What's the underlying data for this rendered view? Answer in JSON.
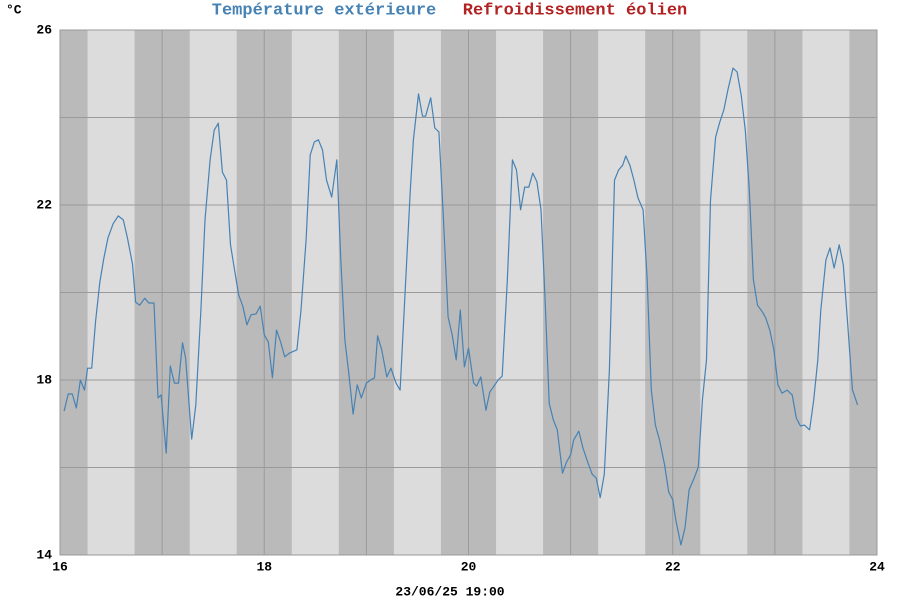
{
  "chart_data": {
    "type": "line",
    "ylabel": "°C",
    "x_label": "23/06/25 19:00",
    "xlim": [
      16,
      24
    ],
    "xticks": [
      16,
      18,
      20,
      22,
      24
    ],
    "xminorticks": [
      17,
      19,
      21,
      23
    ],
    "ylim": [
      14,
      26
    ],
    "yticks": [
      14,
      18,
      22,
      26
    ],
    "yminorticks": [
      16,
      20,
      24
    ],
    "grid": true,
    "day_bands": [
      [
        16.27,
        16.73
      ],
      [
        17.27,
        17.73
      ],
      [
        18.27,
        18.73
      ],
      [
        19.27,
        19.73
      ],
      [
        20.27,
        20.73
      ],
      [
        21.27,
        21.73
      ],
      [
        22.27,
        22.73
      ],
      [
        23.27,
        23.73
      ]
    ],
    "band_color": "#dcdcdc",
    "night_color": "#bababa",
    "grid_color": "#9a9a9a",
    "x": [
      16.04,
      16.08,
      16.12,
      16.16,
      16.2,
      16.24,
      16.27,
      16.31,
      16.35,
      16.39,
      16.43,
      16.47,
      16.52,
      16.57,
      16.62,
      16.66,
      16.71,
      16.74,
      16.78,
      16.83,
      16.87,
      16.92,
      16.96,
      16.99,
      17.04,
      17.08,
      17.12,
      17.16,
      17.2,
      17.23,
      17.29,
      17.33,
      17.38,
      17.42,
      17.47,
      17.51,
      17.55,
      17.59,
      17.63,
      17.67,
      17.71,
      17.75,
      17.79,
      17.83,
      17.87,
      17.92,
      17.96,
      18.0,
      18.04,
      18.08,
      18.12,
      18.16,
      18.2,
      18.25,
      18.32,
      18.36,
      18.41,
      18.45,
      18.49,
      18.53,
      18.57,
      18.61,
      18.66,
      18.71,
      18.75,
      18.79,
      18.83,
      18.87,
      18.91,
      18.95,
      19.0,
      19.04,
      19.08,
      19.11,
      19.15,
      19.2,
      19.24,
      19.29,
      19.33,
      19.37,
      19.43,
      19.46,
      19.51,
      19.55,
      19.58,
      19.63,
      19.67,
      19.71,
      19.75,
      19.8,
      19.84,
      19.88,
      19.92,
      19.96,
      20.0,
      20.05,
      20.08,
      20.12,
      20.17,
      20.21,
      20.25,
      20.29,
      20.33,
      20.38,
      20.43,
      20.47,
      20.51,
      20.55,
      20.59,
      20.63,
      20.67,
      20.71,
      20.75,
      20.79,
      20.83,
      20.87,
      20.92,
      20.96,
      21.0,
      21.03,
      21.08,
      21.12,
      21.16,
      21.21,
      21.25,
      21.29,
      21.33,
      21.38,
      21.43,
      21.47,
      21.51,
      21.54,
      21.58,
      21.62,
      21.66,
      21.71,
      21.75,
      21.79,
      21.83,
      21.87,
      21.92,
      21.96,
      22.0,
      22.03,
      22.08,
      22.12,
      22.16,
      22.21,
      22.25,
      22.29,
      22.33,
      22.37,
      22.42,
      22.46,
      22.5,
      22.54,
      22.59,
      22.63,
      22.67,
      22.71,
      22.75,
      22.79,
      22.83,
      22.88,
      22.91,
      22.95,
      22.99,
      23.03,
      23.07,
      23.12,
      23.17,
      23.21,
      23.25,
      23.29,
      23.34,
      23.38,
      23.42,
      23.45,
      23.5,
      23.54,
      23.58,
      23.63,
      23.67,
      23.71,
      23.76,
      23.81
    ],
    "series": [
      {
        "name": "Température extérieure",
        "color": "#4682b4",
        "values": [
          17.29,
          17.68,
          17.68,
          17.36,
          18.0,
          17.77,
          18.27,
          18.27,
          19.37,
          20.23,
          20.79,
          21.25,
          21.57,
          21.75,
          21.66,
          21.25,
          20.65,
          19.78,
          19.71,
          19.87,
          19.76,
          19.76,
          17.59,
          17.66,
          16.33,
          18.32,
          17.93,
          17.93,
          18.85,
          18.5,
          16.65,
          17.43,
          19.6,
          21.66,
          23.03,
          23.71,
          23.87,
          22.75,
          22.57,
          21.09,
          20.51,
          19.94,
          19.69,
          19.26,
          19.49,
          19.51,
          19.69,
          19.03,
          18.87,
          18.05,
          19.14,
          18.87,
          18.53,
          18.62,
          18.69,
          19.6,
          21.2,
          23.14,
          23.44,
          23.49,
          23.26,
          22.57,
          22.18,
          23.03,
          20.74,
          18.91,
          18.11,
          17.22,
          17.89,
          17.59,
          17.93,
          18.0,
          18.05,
          19.01,
          18.69,
          18.07,
          18.27,
          17.93,
          17.77,
          19.6,
          22.34,
          23.49,
          24.54,
          24.03,
          24.03,
          24.45,
          23.76,
          23.67,
          21.89,
          19.44,
          19.03,
          18.46,
          19.6,
          18.3,
          18.73,
          17.93,
          17.86,
          18.07,
          17.31,
          17.73,
          17.86,
          18.0,
          18.09,
          20.27,
          23.03,
          22.8,
          21.89,
          22.41,
          22.41,
          22.73,
          22.53,
          21.89,
          19.83,
          17.47,
          17.09,
          16.86,
          15.87,
          16.12,
          16.29,
          16.63,
          16.83,
          16.45,
          16.17,
          15.85,
          15.76,
          15.31,
          15.85,
          18.23,
          22.57,
          22.8,
          22.91,
          23.12,
          22.91,
          22.57,
          22.16,
          21.89,
          20.29,
          17.77,
          16.97,
          16.63,
          16.06,
          15.44,
          15.26,
          14.8,
          14.23,
          14.62,
          15.49,
          15.76,
          16.01,
          17.54,
          18.46,
          22.11,
          23.55,
          23.89,
          24.17,
          24.63,
          25.13,
          25.04,
          24.51,
          23.71,
          22.34,
          20.29,
          19.71,
          19.55,
          19.42,
          19.14,
          18.69,
          17.89,
          17.7,
          17.77,
          17.66,
          17.13,
          16.95,
          16.97,
          16.86,
          17.54,
          18.46,
          19.6,
          20.74,
          21.02,
          20.56,
          21.09,
          20.63,
          19.37,
          17.77,
          17.43
        ]
      },
      {
        "name": "Refroidissement éolien",
        "color": "#b22222",
        "values": [
          null,
          null,
          null,
          null,
          null,
          null,
          null,
          null,
          null,
          null,
          null,
          null,
          null,
          null,
          null,
          null,
          null,
          null,
          null,
          null,
          null,
          null,
          null,
          null,
          null,
          null,
          null,
          null,
          null,
          null,
          null,
          null,
          null,
          null,
          null,
          null,
          null,
          null,
          null,
          null,
          null,
          null,
          null,
          null,
          null,
          null,
          null,
          null,
          null,
          null,
          null,
          null,
          null,
          null,
          null,
          null,
          null,
          null,
          null,
          null,
          null,
          null,
          null,
          null,
          null,
          null,
          null,
          null,
          null,
          null,
          null,
          null,
          null,
          null,
          null,
          null,
          null,
          null,
          null,
          null,
          null,
          null,
          null,
          null,
          null,
          null,
          null,
          null,
          null,
          null,
          null,
          null,
          null,
          null,
          null,
          null,
          null,
          null,
          null,
          null,
          null,
          null,
          null,
          null,
          null,
          null,
          null,
          null,
          null,
          null,
          null,
          null,
          null,
          null,
          null,
          null,
          null,
          null,
          null,
          null,
          null,
          null,
          null,
          null,
          null,
          null,
          null,
          null,
          null,
          null,
          null,
          null,
          null,
          null,
          null,
          null,
          null,
          null,
          null,
          null,
          null,
          null,
          null,
          null,
          null,
          null,
          null,
          null,
          null,
          null,
          null,
          null,
          null,
          null,
          null,
          null,
          null,
          null,
          null,
          null,
          null,
          null,
          null,
          null,
          null,
          null,
          null,
          null,
          null,
          null,
          null,
          null,
          null,
          null,
          null,
          null,
          null,
          null,
          null,
          null,
          null,
          null,
          null,
          null,
          null,
          null
        ]
      }
    ]
  }
}
